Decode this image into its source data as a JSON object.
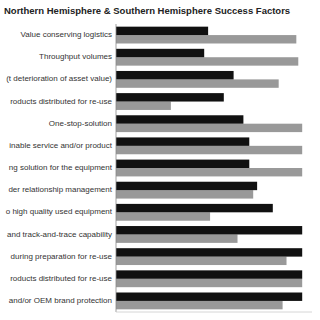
{
  "chart_data": {
    "type": "bar",
    "orientation": "horizontal",
    "title": "Northern Hemisphere & Southern Hemisphere Success Factors",
    "categories": [
      "Value conserving logistics",
      "Throughput volumes",
      "(t deterioration of asset value)",
      "roducts distributed for re-use",
      "One-stop-solution",
      "inable service and/or product",
      "ng solution for the equipment",
      "der relationship management",
      "o high quality used equipment",
      "and track-and-trace capability",
      "during preparation for re-use",
      "roducts distributed for re-use",
      "and/or OEM brand protection"
    ],
    "series": [
      {
        "color": "#999999",
        "values": [
          92,
          93,
          83,
          28,
          95,
          95,
          95,
          70,
          48,
          62,
          87,
          95,
          85
        ]
      },
      {
        "color": "#111111",
        "values": [
          47,
          45,
          60,
          55,
          65,
          68,
          68,
          72,
          80,
          95,
          95,
          95,
          95
        ]
      }
    ],
    "xlim": [
      0,
      100
    ],
    "xticks": [],
    "grid": false,
    "tick_labels": "y"
  }
}
